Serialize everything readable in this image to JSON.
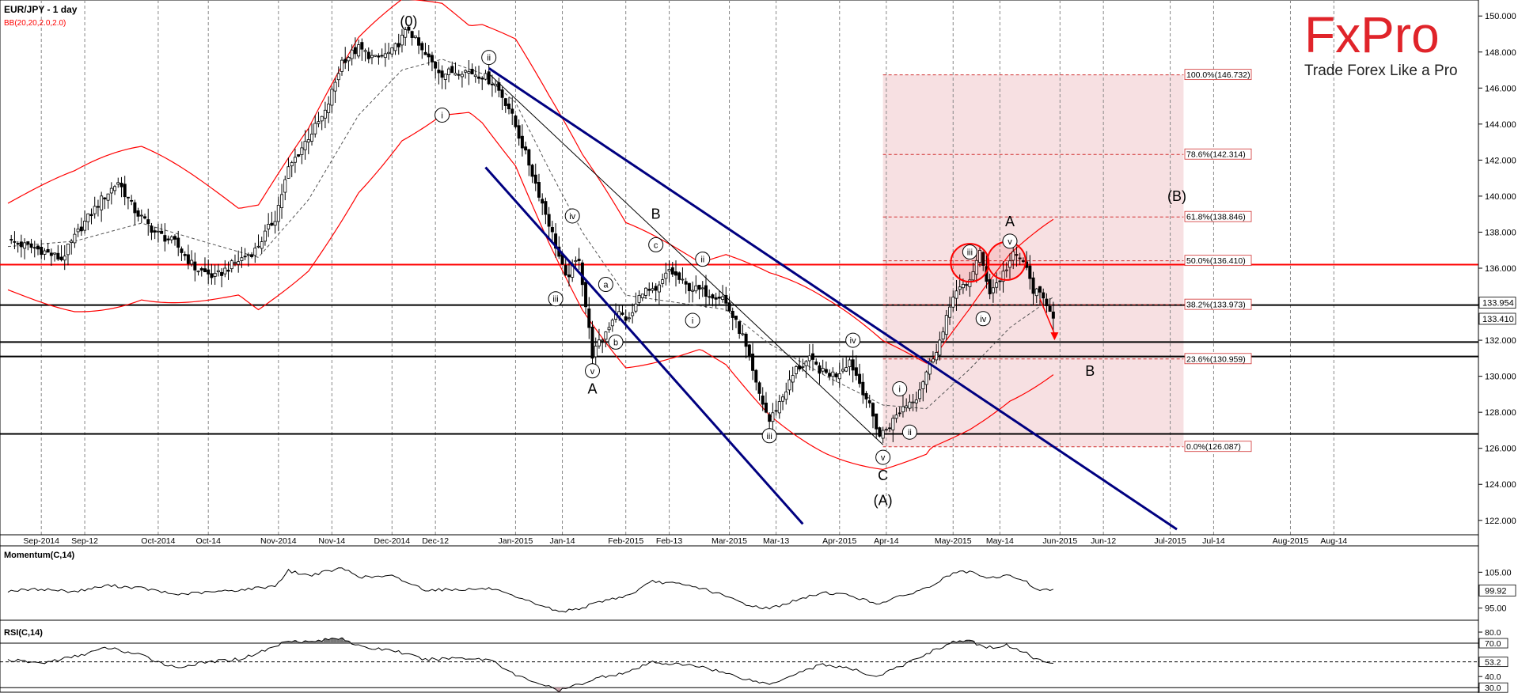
{
  "header": {
    "title": "EUR/JPY - 1 day",
    "indicator": "BB(20,20,2.0,2.0)"
  },
  "brand": {
    "logo": "FxPro",
    "tagline": "Trade Forex Like a Pro",
    "color": "#e0242a"
  },
  "colors": {
    "up": "#ffffff",
    "down": "#000000",
    "bb": "#ff0000",
    "channel": "#000080",
    "fibZone": "#f7e0e2",
    "resistance": "#ff0000"
  },
  "chart_data": {
    "type": "candlestick",
    "title": "EUR/JPY - 1 day",
    "ylim": [
      121.2,
      150.8
    ],
    "y_ticks": [
      "150.000",
      "148.000",
      "146.000",
      "144.000",
      "142.000",
      "140.000",
      "138.000",
      "136.000",
      "134.000",
      "132.000",
      "130.000",
      "128.000",
      "126.000",
      "124.000",
      "122.000"
    ],
    "y_tick_values": [
      150,
      148,
      146,
      144,
      142,
      140,
      138,
      136,
      134,
      132,
      130,
      128,
      126,
      124,
      122
    ],
    "x_ticks": [
      "Sep-2014",
      "Sep-12",
      "Oct-2014",
      "Oct-14",
      "Nov-2014",
      "Nov-14",
      "Dec-2014",
      "Dec-12",
      "Jan-2015",
      "Jan-14",
      "Feb-2015",
      "Feb-13",
      "Mar-2015",
      "Mar-13",
      "Apr-2015",
      "Apr-14",
      "May-2015",
      "May-14",
      "Jun-2015",
      "Jun-12",
      "Jul-2015",
      "Jul-14",
      "Aug-2015",
      "Aug-14"
    ],
    "x_tick_index": [
      10,
      23,
      45,
      60,
      81,
      97,
      115,
      128,
      152,
      166,
      185,
      198,
      216,
      230,
      249,
      263,
      283,
      297,
      315,
      328,
      348,
      361,
      384,
      397
    ],
    "last_close": "133.410",
    "last_close_value": 133.41,
    "second_price": "133.954",
    "second_price_value": 133.954,
    "price_anchors": [
      [
        0,
        137.5
      ],
      [
        10,
        137.0
      ],
      [
        16,
        136.5
      ],
      [
        22,
        138.3
      ],
      [
        28,
        139.8
      ],
      [
        33,
        140.8
      ],
      [
        38,
        139.2
      ],
      [
        44,
        138.0
      ],
      [
        50,
        137.4
      ],
      [
        56,
        136.0
      ],
      [
        62,
        135.5
      ],
      [
        68,
        136.3
      ],
      [
        74,
        137.0
      ],
      [
        80,
        138.8
      ],
      [
        84,
        141.5
      ],
      [
        90,
        143.3
      ],
      [
        95,
        144.6
      ],
      [
        100,
        147.5
      ],
      [
        105,
        148.2
      ],
      [
        110,
        147.6
      ],
      [
        115,
        148.0
      ],
      [
        120,
        149.3
      ],
      [
        124,
        148.0
      ],
      [
        130,
        146.8
      ],
      [
        136,
        147.0
      ],
      [
        142,
        146.7
      ],
      [
        146,
        146.2
      ],
      [
        150,
        144.9
      ],
      [
        156,
        141.8
      ],
      [
        162,
        138.5
      ],
      [
        167,
        135.4
      ],
      [
        171,
        136.6
      ],
      [
        175,
        131.2
      ],
      [
        178,
        132.1
      ],
      [
        182,
        133.6
      ],
      [
        186,
        133.1
      ],
      [
        190,
        134.8
      ],
      [
        194,
        134.6
      ],
      [
        198,
        135.9
      ],
      [
        203,
        135.0
      ],
      [
        208,
        134.7
      ],
      [
        214,
        134.4
      ],
      [
        220,
        132.2
      ],
      [
        224,
        129.5
      ],
      [
        228,
        127.5
      ],
      [
        232,
        128.9
      ],
      [
        236,
        130.4
      ],
      [
        240,
        130.9
      ],
      [
        244,
        130.2
      ],
      [
        248,
        130.1
      ],
      [
        252,
        130.9
      ],
      [
        257,
        128.8
      ],
      [
        261,
        126.7
      ],
      [
        264,
        127.3
      ],
      [
        268,
        128.3
      ],
      [
        272,
        128.9
      ],
      [
        276,
        130.7
      ],
      [
        280,
        132.4
      ],
      [
        283,
        134.6
      ],
      [
        287,
        135.0
      ],
      [
        291,
        136.8
      ],
      [
        294,
        134.7
      ],
      [
        297,
        135.4
      ],
      [
        301,
        136.7
      ],
      [
        304,
        136.4
      ],
      [
        307,
        134.8
      ],
      [
        311,
        134.1
      ],
      [
        313,
        133.41
      ]
    ],
    "bollinger_mid_anchors": [
      [
        0,
        137.2
      ],
      [
        20,
        137.5
      ],
      [
        40,
        138.5
      ],
      [
        60,
        137.4
      ],
      [
        75,
        136.6
      ],
      [
        90,
        139.8
      ],
      [
        105,
        144.5
      ],
      [
        118,
        147.0
      ],
      [
        130,
        147.6
      ],
      [
        142,
        146.8
      ],
      [
        152,
        145.2
      ],
      [
        162,
        141.5
      ],
      [
        172,
        138.0
      ],
      [
        185,
        134.5
      ],
      [
        200,
        134.1
      ],
      [
        215,
        133.7
      ],
      [
        228,
        131.8
      ],
      [
        245,
        130.0
      ],
      [
        262,
        128.4
      ],
      [
        275,
        128.2
      ],
      [
        288,
        130.4
      ],
      [
        300,
        132.7
      ],
      [
        313,
        134.4
      ]
    ],
    "bollinger_band_width": 2.4,
    "resistance_level": 136.2,
    "support_levels": [
      133.954,
      131.9,
      131.1,
      126.8
    ],
    "fibonacci": {
      "levels": [
        {
          "label": "100.0%(146.732)",
          "value": 146.732
        },
        {
          "label": "78.6%(142.314)",
          "value": 142.314
        },
        {
          "label": "61.8%(138.846)",
          "value": 138.846
        },
        {
          "label": "50.0%(136.410)",
          "value": 136.41
        },
        {
          "label": "38.2%(133.973)",
          "value": 133.973
        },
        {
          "label": "23.6%(130.959)",
          "value": 130.959
        },
        {
          "label": "0.0%(126.087)",
          "value": 126.087
        }
      ],
      "x_range_index": [
        262,
        352
      ]
    },
    "channel_lines": [
      {
        "from": [
          144,
          147.1
        ],
        "to": [
          350,
          121.5
        ]
      },
      {
        "from": [
          143,
          141.6
        ],
        "to": [
          238,
          121.8
        ]
      }
    ],
    "trend_line": {
      "from": [
        144,
        146.8
      ],
      "to": [
        262,
        126.2
      ]
    },
    "wave_labels": [
      {
        "text": "(0)",
        "index": 120,
        "price": 149.7,
        "circled": false
      },
      {
        "text": "ii",
        "index": 144,
        "price": 147.7,
        "circled": true
      },
      {
        "text": "i",
        "index": 130,
        "price": 144.5,
        "circled": true
      },
      {
        "text": "iv",
        "index": 169,
        "price": 138.9,
        "circled": true
      },
      {
        "text": "iii",
        "index": 164,
        "price": 134.3,
        "circled": true
      },
      {
        "text": "a",
        "index": 179,
        "price": 135.1,
        "circled": true
      },
      {
        "text": "b",
        "index": 182,
        "price": 131.9,
        "circled": true
      },
      {
        "text": "v",
        "index": 175,
        "price": 130.3,
        "circled": true
      },
      {
        "text": "A",
        "index": 175,
        "price": 129.3,
        "circled": false
      },
      {
        "text": "B",
        "index": 194,
        "price": 139.0,
        "circled": false
      },
      {
        "text": "c",
        "index": 194,
        "price": 137.3,
        "circled": true
      },
      {
        "text": "ii",
        "index": 208,
        "price": 136.5,
        "circled": true
      },
      {
        "text": "i",
        "index": 205,
        "price": 133.1,
        "circled": true
      },
      {
        "text": "iii",
        "index": 228,
        "price": 126.7,
        "circled": true
      },
      {
        "text": "iv",
        "index": 253,
        "price": 132.0,
        "circled": true
      },
      {
        "text": "v",
        "index": 262,
        "price": 125.5,
        "circled": true
      },
      {
        "text": "C",
        "index": 262,
        "price": 124.5,
        "circled": false
      },
      {
        "text": "(A)",
        "index": 262,
        "price": 123.1,
        "circled": false
      },
      {
        "text": "i",
        "index": 267,
        "price": 129.3,
        "circled": true
      },
      {
        "text": "ii",
        "index": 270,
        "price": 126.9,
        "circled": true
      },
      {
        "text": "iii",
        "index": 288,
        "price": 136.9,
        "circled": true
      },
      {
        "text": "iv",
        "index": 292,
        "price": 133.2,
        "circled": true
      },
      {
        "text": "v",
        "index": 300,
        "price": 137.5,
        "circled": true
      },
      {
        "text": "A",
        "index": 300,
        "price": 138.6,
        "circled": false
      },
      {
        "text": "B",
        "index": 324,
        "price": 130.3,
        "circled": false
      },
      {
        "text": "(B)",
        "index": 350,
        "price": 140.0,
        "circled": false
      }
    ],
    "highlight_circles": [
      {
        "index": 288,
        "price": 136.3
      },
      {
        "index": 299,
        "price": 136.4
      }
    ],
    "forecast_arrow": {
      "from": [
        309,
        134.3
      ],
      "to": [
        311,
        132.0
      ]
    }
  },
  "momentum": {
    "label": "Momentum(C,14)",
    "ticks": [
      "105.00",
      "95.00"
    ],
    "tick_values": [
      105.0,
      95.0
    ],
    "ylim": [
      92.5,
      107.5
    ],
    "last": "99.92",
    "last_value": 99.92,
    "anchors": [
      [
        0,
        99.8
      ],
      [
        10,
        100.3
      ],
      [
        20,
        99.6
      ],
      [
        30,
        101.3
      ],
      [
        40,
        100.6
      ],
      [
        50,
        98.8
      ],
      [
        60,
        99.4
      ],
      [
        70,
        100.1
      ],
      [
        80,
        101.2
      ],
      [
        84,
        105.4
      ],
      [
        90,
        104.1
      ],
      [
        100,
        106.1
      ],
      [
        106,
        103.6
      ],
      [
        115,
        103.9
      ],
      [
        125,
        100.1
      ],
      [
        135,
        100.2
      ],
      [
        145,
        100.4
      ],
      [
        152,
        97.9
      ],
      [
        160,
        95.7
      ],
      [
        165,
        93.9
      ],
      [
        172,
        95.1
      ],
      [
        178,
        97.0
      ],
      [
        186,
        98.6
      ],
      [
        193,
        102.4
      ],
      [
        200,
        101.8
      ],
      [
        208,
        100.5
      ],
      [
        216,
        97.9
      ],
      [
        222,
        95.7
      ],
      [
        228,
        94.9
      ],
      [
        236,
        97.1
      ],
      [
        244,
        99.4
      ],
      [
        252,
        98.6
      ],
      [
        260,
        96.2
      ],
      [
        268,
        98.4
      ],
      [
        276,
        100.9
      ],
      [
        283,
        104.8
      ],
      [
        288,
        105.1
      ],
      [
        293,
        103.2
      ],
      [
        299,
        104.1
      ],
      [
        304,
        102.9
      ],
      [
        308,
        100.2
      ],
      [
        313,
        99.92
      ]
    ]
  },
  "rsi": {
    "label": "RSI(C,14)",
    "ticks": [
      "80.0",
      "70.0",
      "53.2",
      "40.0",
      "30.0"
    ],
    "tick_values": [
      80,
      70,
      53.2,
      40,
      30
    ],
    "ylim": [
      28,
      85
    ],
    "last": "53.2",
    "last_value": 53.2,
    "anchors": [
      [
        0,
        55
      ],
      [
        10,
        52
      ],
      [
        20,
        58
      ],
      [
        30,
        66
      ],
      [
        40,
        59
      ],
      [
        50,
        48
      ],
      [
        60,
        53
      ],
      [
        70,
        56
      ],
      [
        80,
        67
      ],
      [
        84,
        73
      ],
      [
        90,
        71
      ],
      [
        100,
        75
      ],
      [
        106,
        66
      ],
      [
        115,
        64
      ],
      [
        125,
        55
      ],
      [
        135,
        57
      ],
      [
        145,
        55
      ],
      [
        152,
        41
      ],
      [
        160,
        33
      ],
      [
        165,
        27
      ],
      [
        172,
        34
      ],
      [
        178,
        40
      ],
      [
        186,
        44
      ],
      [
        193,
        53
      ],
      [
        200,
        51
      ],
      [
        208,
        49
      ],
      [
        216,
        42
      ],
      [
        222,
        37
      ],
      [
        228,
        33
      ],
      [
        236,
        43
      ],
      [
        244,
        51
      ],
      [
        252,
        47
      ],
      [
        260,
        40
      ],
      [
        268,
        50
      ],
      [
        276,
        62
      ],
      [
        283,
        71
      ],
      [
        288,
        72
      ],
      [
        293,
        66
      ],
      [
        299,
        68
      ],
      [
        304,
        63
      ],
      [
        308,
        55
      ],
      [
        313,
        53.2
      ]
    ]
  }
}
